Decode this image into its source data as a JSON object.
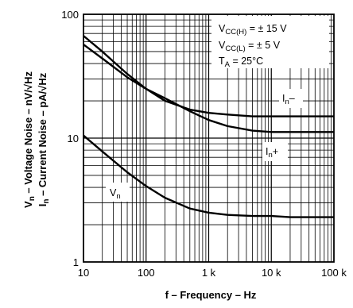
{
  "chart_data": {
    "type": "line",
    "title": "",
    "xlabel": "f – Frequency – Hz",
    "ylabel_top": "V n – Voltage Noise – nV/√Hz",
    "ylabel_bottom": "I n – Current Noise – pA/√Hz",
    "xscale": "log",
    "yscale": "log",
    "xlim": [
      10,
      100000
    ],
    "ylim": [
      1,
      100
    ],
    "grid": true,
    "x_ticks": [
      {
        "value": 10,
        "label": "10"
      },
      {
        "value": 100,
        "label": "100"
      },
      {
        "value": 1000,
        "label": "1 k"
      },
      {
        "value": 10000,
        "label": "10 k"
      },
      {
        "value": 100000,
        "label": "100 k"
      }
    ],
    "y_ticks": [
      {
        "value": 1,
        "label": "1"
      },
      {
        "value": 10,
        "label": "10"
      },
      {
        "value": 100,
        "label": "100"
      }
    ],
    "conditions": [
      "VCC(H) = ± 15 V",
      "VCC(L) = ± 5 V",
      "TA = 25°C"
    ],
    "series": [
      {
        "name": "In−",
        "x": [
          10,
          20,
          50,
          100,
          200,
          500,
          1000,
          2000,
          5000,
          10000,
          20000,
          50000,
          100000
        ],
        "y": [
          67,
          50,
          33,
          25,
          20,
          17,
          16,
          15.5,
          15,
          15,
          15,
          15,
          15
        ]
      },
      {
        "name": "In+",
        "x": [
          10,
          20,
          50,
          100,
          200,
          500,
          1000,
          2000,
          5000,
          10000,
          20000,
          50000,
          100000
        ],
        "y": [
          57,
          44,
          31,
          25,
          21,
          16.5,
          14,
          12.5,
          11.5,
          11.2,
          11.2,
          11.2,
          11.2
        ]
      },
      {
        "name": "Vn",
        "x": [
          10,
          20,
          50,
          100,
          200,
          500,
          1000,
          2000,
          5000,
          10000,
          20000,
          50000,
          100000
        ],
        "y": [
          10.5,
          7.8,
          5.3,
          4.1,
          3.3,
          2.7,
          2.5,
          2.4,
          2.35,
          2.35,
          2.3,
          2.3,
          2.3
        ]
      }
    ],
    "series_labels": {
      "In_minus": {
        "main": "I",
        "sub": "n",
        "suffix": "–"
      },
      "In_plus": {
        "main": "I",
        "sub": "n",
        "suffix": "+"
      },
      "Vn": {
        "main": "V",
        "sub": "n"
      }
    },
    "colors": {
      "line": "#000000",
      "grid": "#000000",
      "background": "#ffffff"
    }
  }
}
